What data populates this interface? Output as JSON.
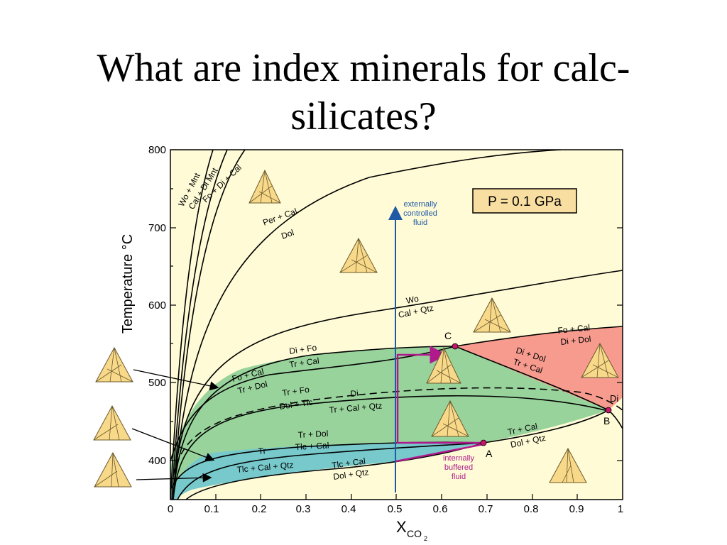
{
  "slide": {
    "title_line1": "What are index minerals for calc-",
    "title_line2": "silicates?"
  },
  "diagram": {
    "pressure_label": "P = 0.1 GPa",
    "y_axis_label": "Temperature °C",
    "x_axis_label_main": "X",
    "x_axis_label_sub": "CO",
    "x_axis_label_subsub": "2",
    "y_ticks": [
      "400",
      "500",
      "600",
      "700",
      "800"
    ],
    "x_ticks": [
      "0",
      "0.1",
      "0.2",
      "0.3",
      "0.4",
      "0.5",
      "0.6",
      "0.7",
      "0.8",
      "0.9",
      "1"
    ],
    "arrow_label_lines": [
      "externally",
      "controlled",
      "fluid"
    ],
    "buffer_label_lines": [
      "internally",
      "buffered",
      "fluid"
    ],
    "points": {
      "A": "A",
      "B": "B",
      "C": "C",
      "Di": "Di"
    },
    "reaction_labels": {
      "wo_mnt": "Wo + Mnt",
      "cal_di_mnt": "Cal + Di  Mnt",
      "fo_di_cal": "Fo + Di + Cal",
      "per_cal": "Per + Cal",
      "dol": "Dol",
      "wo": "Wo",
      "cal_qtz": "Cal + Qtz",
      "di_fo": "Di + Fo",
      "tr_cal_upper": "Tr + Cal",
      "fo_cal_left": "Fo + Cal",
      "tr_dol_left": "Tr + Dol",
      "fo_cal_right": "Fo + Cal",
      "di_dol_right": "Di + Dol",
      "di_dol_mid": "Di + Dol",
      "tr_cal_mid": "Tr + Cal",
      "tr_fo": "Tr + Fo",
      "dol_tlc": "Dol + Tlc",
      "di": "Di",
      "tr_cal_qtz": "Tr + Cal + Qtz",
      "tr_dol_lower": "Tr + Dol",
      "tlc_cal": "Tlc + Cal",
      "tr": "Tr",
      "tlc_cal_qtz": "Tlc + Cal + Qtz",
      "tlc_cal_lower": "Tlc + Cal",
      "dol_qtz_lower": "Dol + Qtz",
      "tr_cal_right": "Tr + Cal",
      "dol_qtz_right": "Dol + Qtz"
    },
    "colors": {
      "background": "#fefbd6",
      "green_field": "#99d39c",
      "blue_field": "#77c9cc",
      "pink_field": "#f69b8e",
      "axis_arrow": "#1f5aa6",
      "buffer_path": "#b01a8c",
      "point_marker": "#c4166a",
      "pressure_box": "#f8dea0"
    }
  }
}
